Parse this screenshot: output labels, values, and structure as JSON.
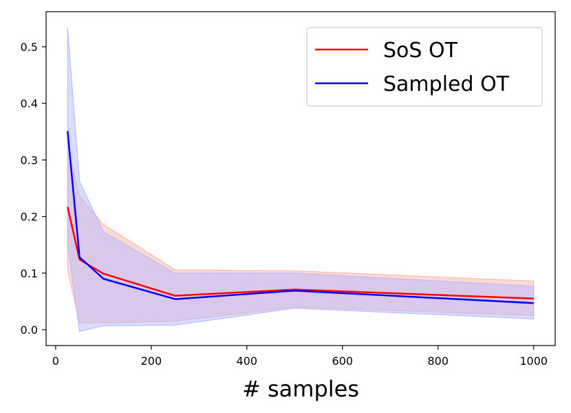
{
  "chart_data": {
    "type": "line",
    "title": "",
    "xlabel": "# samples",
    "ylabel": "",
    "xlim": [
      -20,
      1045
    ],
    "ylim": [
      -0.028,
      0.562
    ],
    "x_ticks": [
      0,
      200,
      400,
      600,
      800,
      1000
    ],
    "y_ticks": [
      0.0,
      0.1,
      0.2,
      0.3,
      0.4,
      0.5
    ],
    "x_tick_labels": [
      "0",
      "200",
      "400",
      "600",
      "800",
      "1000"
    ],
    "y_tick_labels": [
      "0.0",
      "0.1",
      "0.2",
      "0.3",
      "0.4",
      "0.5"
    ],
    "grid": false,
    "legend_position": "upper right",
    "x": [
      25,
      50,
      100,
      250,
      500,
      1000
    ],
    "series": [
      {
        "name": "SoS OT",
        "color": "#ff0000",
        "fill_color": "#ffb3a8",
        "values": [
          0.217,
          0.124,
          0.099,
          0.06,
          0.071,
          0.055
        ],
        "lower": [
          0.105,
          0.012,
          0.012,
          0.015,
          0.04,
          0.025
        ],
        "upper": [
          0.325,
          0.236,
          0.186,
          0.106,
          0.104,
          0.086
        ]
      },
      {
        "name": "Sampled OT",
        "color": "#0000ff",
        "fill_color": "#b3b8ff",
        "values": [
          0.351,
          0.128,
          0.09,
          0.054,
          0.069,
          0.047
        ],
        "lower": [
          0.15,
          -0.003,
          0.007,
          0.008,
          0.038,
          0.019
        ],
        "upper": [
          0.534,
          0.262,
          0.173,
          0.1,
          0.1,
          0.077
        ]
      }
    ]
  }
}
